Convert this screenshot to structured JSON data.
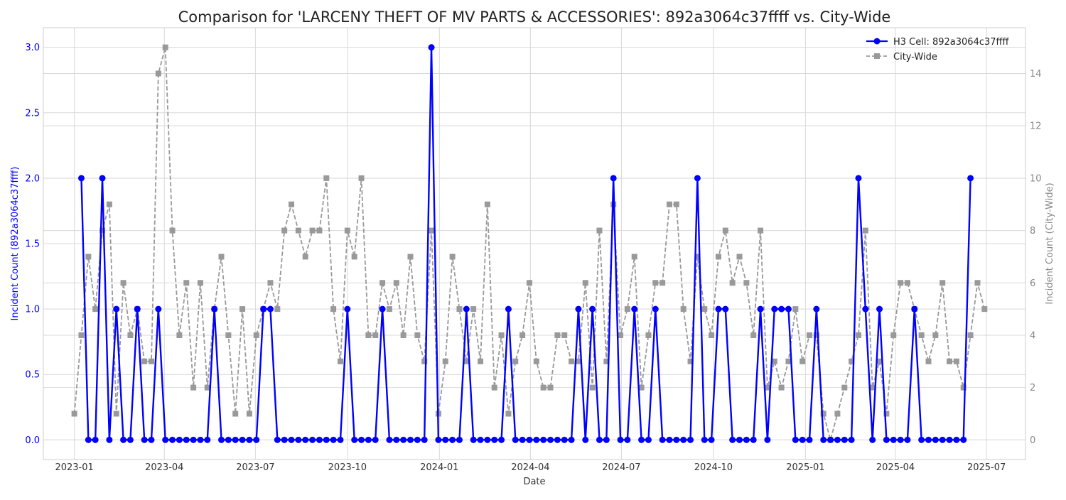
{
  "chart_data": {
    "type": "line",
    "title": "Comparison for 'LARCENY THEFT OF MV PARTS & ACCESSORIES': 892a3064c37ffff vs. City-Wide",
    "xlabel": "Date",
    "ylabel_left": "Incident Count (892a3064c37ffff)",
    "ylabel_right": "Incident Count (City-Wide)",
    "x_ticks": [
      "2023-01",
      "2023-04",
      "2023-07",
      "2023-10",
      "2024-01",
      "2024-04",
      "2024-07",
      "2024-10",
      "2025-01",
      "2025-04",
      "2025-07"
    ],
    "y_left_ticks": [
      "0.0",
      "0.5",
      "1.0",
      "1.5",
      "2.0",
      "2.5",
      "3.0"
    ],
    "y_right_ticks": [
      "0",
      "2",
      "4",
      "6",
      "8",
      "10",
      "12",
      "14"
    ],
    "ylim_left": [
      -0.15,
      3.15
    ],
    "ylim_right": [
      -0.75,
      15.75
    ],
    "grid": true,
    "legend_position": "top-right",
    "series": [
      {
        "name": "H3 Cell: 892a3064c37ffff",
        "axis": "left",
        "color": "#0000ff",
        "marker": "circle",
        "x": [
          "2023-01-08",
          "2023-01-15",
          "2023-01-22",
          "2023-01-29",
          "2023-02-05",
          "2023-02-12",
          "2023-02-19",
          "2023-02-26",
          "2023-03-05",
          "2023-03-12",
          "2023-03-19",
          "2023-03-26",
          "2023-04-02",
          "2023-04-09",
          "2023-04-16",
          "2023-04-23",
          "2023-04-30",
          "2023-05-07",
          "2023-05-14",
          "2023-05-21",
          "2023-05-28",
          "2023-06-04",
          "2023-06-11",
          "2023-06-18",
          "2023-06-25",
          "2023-07-02",
          "2023-07-09",
          "2023-07-16",
          "2023-07-23",
          "2023-07-30",
          "2023-08-06",
          "2023-08-13",
          "2023-08-20",
          "2023-08-27",
          "2023-09-03",
          "2023-09-10",
          "2023-09-17",
          "2023-09-24",
          "2023-10-01",
          "2023-10-08",
          "2023-10-15",
          "2023-10-22",
          "2023-10-29",
          "2023-11-05",
          "2023-11-12",
          "2023-11-19",
          "2023-11-26",
          "2023-12-03",
          "2023-12-10",
          "2023-12-17",
          "2023-12-24",
          "2023-12-31",
          "2024-01-07",
          "2024-01-14",
          "2024-01-21",
          "2024-01-28",
          "2024-02-04",
          "2024-02-11",
          "2024-02-18",
          "2024-02-25",
          "2024-03-03",
          "2024-03-10",
          "2024-03-17",
          "2024-03-24",
          "2024-03-31",
          "2024-04-07",
          "2024-04-14",
          "2024-04-21",
          "2024-04-28",
          "2024-05-05",
          "2024-05-12",
          "2024-05-19",
          "2024-05-26",
          "2024-06-02",
          "2024-06-09",
          "2024-06-16",
          "2024-06-23",
          "2024-06-30",
          "2024-07-07",
          "2024-07-14",
          "2024-07-21",
          "2024-07-28",
          "2024-08-04",
          "2024-08-11",
          "2024-08-18",
          "2024-08-25",
          "2024-09-01",
          "2024-09-08",
          "2024-09-15",
          "2024-09-22",
          "2024-09-29",
          "2024-10-06",
          "2024-10-13",
          "2024-10-20",
          "2024-10-27",
          "2024-11-03",
          "2024-11-10",
          "2024-11-17",
          "2024-11-24",
          "2024-12-01",
          "2024-12-08",
          "2024-12-15",
          "2024-12-22",
          "2024-12-29",
          "2025-01-05",
          "2025-01-12",
          "2025-01-19",
          "2025-01-26",
          "2025-02-02",
          "2025-02-09",
          "2025-02-16",
          "2025-02-23",
          "2025-03-02",
          "2025-03-09",
          "2025-03-16",
          "2025-03-23",
          "2025-03-30",
          "2025-04-06",
          "2025-04-13",
          "2025-04-20",
          "2025-04-27",
          "2025-05-04",
          "2025-05-11",
          "2025-05-18",
          "2025-05-25",
          "2025-06-01",
          "2025-06-08",
          "2025-06-15"
        ],
        "values": [
          2,
          0,
          0,
          2,
          0,
          1,
          0,
          0,
          1,
          0,
          0,
          1,
          0,
          0,
          0,
          0,
          0,
          0,
          0,
          1,
          0,
          0,
          0,
          0,
          0,
          0,
          1,
          1,
          0,
          0,
          0,
          0,
          0,
          0,
          0,
          0,
          0,
          0,
          1,
          0,
          0,
          0,
          0,
          1,
          0,
          0,
          0,
          0,
          0,
          0,
          3,
          0,
          0,
          0,
          0,
          1,
          0,
          0,
          0,
          0,
          0,
          1,
          0,
          0,
          0,
          0,
          0,
          0,
          0,
          0,
          0,
          1,
          0,
          1,
          0,
          0,
          2,
          0,
          0,
          1,
          0,
          0,
          1,
          0,
          0,
          0,
          0,
          0,
          2,
          0,
          0,
          1,
          1,
          0,
          0,
          0,
          0,
          1,
          0,
          1,
          1,
          1,
          0,
          0,
          0,
          1,
          0,
          0,
          0,
          0,
          0,
          2,
          1,
          0,
          1,
          0,
          0,
          0,
          0,
          1,
          0,
          0,
          0,
          0,
          0,
          0,
          0,
          2
        ]
      },
      {
        "name": "City-Wide",
        "axis": "right",
        "color": "#999999",
        "marker": "square",
        "x": [
          "2023-01-01",
          "2023-01-08",
          "2023-01-15",
          "2023-01-22",
          "2023-01-29",
          "2023-02-05",
          "2023-02-12",
          "2023-02-19",
          "2023-02-26",
          "2023-03-05",
          "2023-03-12",
          "2023-03-19",
          "2023-03-26",
          "2023-04-02",
          "2023-04-09",
          "2023-04-16",
          "2023-04-23",
          "2023-04-30",
          "2023-05-07",
          "2023-05-14",
          "2023-05-21",
          "2023-05-28",
          "2023-06-04",
          "2023-06-11",
          "2023-06-18",
          "2023-06-25",
          "2023-07-02",
          "2023-07-09",
          "2023-07-16",
          "2023-07-23",
          "2023-07-30",
          "2023-08-06",
          "2023-08-13",
          "2023-08-20",
          "2023-08-27",
          "2023-09-03",
          "2023-09-10",
          "2023-09-17",
          "2023-09-24",
          "2023-10-01",
          "2023-10-08",
          "2023-10-15",
          "2023-10-22",
          "2023-10-29",
          "2023-11-05",
          "2023-11-12",
          "2023-11-19",
          "2023-11-26",
          "2023-12-03",
          "2023-12-10",
          "2023-12-17",
          "2023-12-24",
          "2023-12-31",
          "2024-01-07",
          "2024-01-14",
          "2024-01-21",
          "2024-01-28",
          "2024-02-04",
          "2024-02-11",
          "2024-02-18",
          "2024-02-25",
          "2024-03-03",
          "2024-03-10",
          "2024-03-17",
          "2024-03-24",
          "2024-03-31",
          "2024-04-07",
          "2024-04-14",
          "2024-04-21",
          "2024-04-28",
          "2024-05-05",
          "2024-05-12",
          "2024-05-19",
          "2024-05-26",
          "2024-06-02",
          "2024-06-09",
          "2024-06-16",
          "2024-06-23",
          "2024-06-30",
          "2024-07-07",
          "2024-07-14",
          "2024-07-21",
          "2024-07-28",
          "2024-08-04",
          "2024-08-11",
          "2024-08-18",
          "2024-08-25",
          "2024-09-01",
          "2024-09-08",
          "2024-09-15",
          "2024-09-22",
          "2024-09-29",
          "2024-10-06",
          "2024-10-13",
          "2024-10-20",
          "2024-10-27",
          "2024-11-03",
          "2024-11-10",
          "2024-11-17",
          "2024-11-24",
          "2024-12-01",
          "2024-12-08",
          "2024-12-15",
          "2024-12-22",
          "2024-12-29",
          "2025-01-05",
          "2025-01-12",
          "2025-01-19",
          "2025-01-26",
          "2025-02-02",
          "2025-02-09",
          "2025-02-16",
          "2025-02-23",
          "2025-03-02",
          "2025-03-09",
          "2025-03-16",
          "2025-03-23",
          "2025-03-30",
          "2025-04-06",
          "2025-04-13",
          "2025-04-20",
          "2025-04-27",
          "2025-05-04",
          "2025-05-11",
          "2025-05-18",
          "2025-05-25",
          "2025-06-01",
          "2025-06-08",
          "2025-06-15",
          "2025-06-22",
          "2025-06-29"
        ],
        "values": [
          1,
          4,
          7,
          5,
          8,
          9,
          1,
          6,
          4,
          5,
          3,
          3,
          14,
          15,
          8,
          4,
          6,
          2,
          6,
          2,
          5,
          7,
          4,
          1,
          5,
          1,
          4,
          5,
          6,
          5,
          8,
          9,
          8,
          7,
          8,
          8,
          10,
          5,
          3,
          8,
          7,
          10,
          4,
          4,
          6,
          5,
          6,
          4,
          7,
          4,
          3,
          8,
          1,
          3,
          7,
          5,
          3,
          5,
          3,
          9,
          2,
          4,
          1,
          3,
          4,
          6,
          3,
          2,
          2,
          4,
          4,
          3,
          3,
          6,
          2,
          8,
          3,
          9,
          4,
          5,
          7,
          2,
          4,
          6,
          6,
          9,
          9,
          5,
          3,
          7,
          5,
          4,
          7,
          8,
          6,
          7,
          6,
          4,
          8,
          2,
          3,
          2,
          3,
          5,
          3,
          4,
          4,
          1,
          0,
          1,
          2,
          3,
          4,
          8,
          2,
          3,
          1,
          4,
          6,
          6,
          5,
          4,
          3,
          4,
          6,
          3,
          3,
          2,
          4,
          6,
          5
        ]
      }
    ]
  }
}
